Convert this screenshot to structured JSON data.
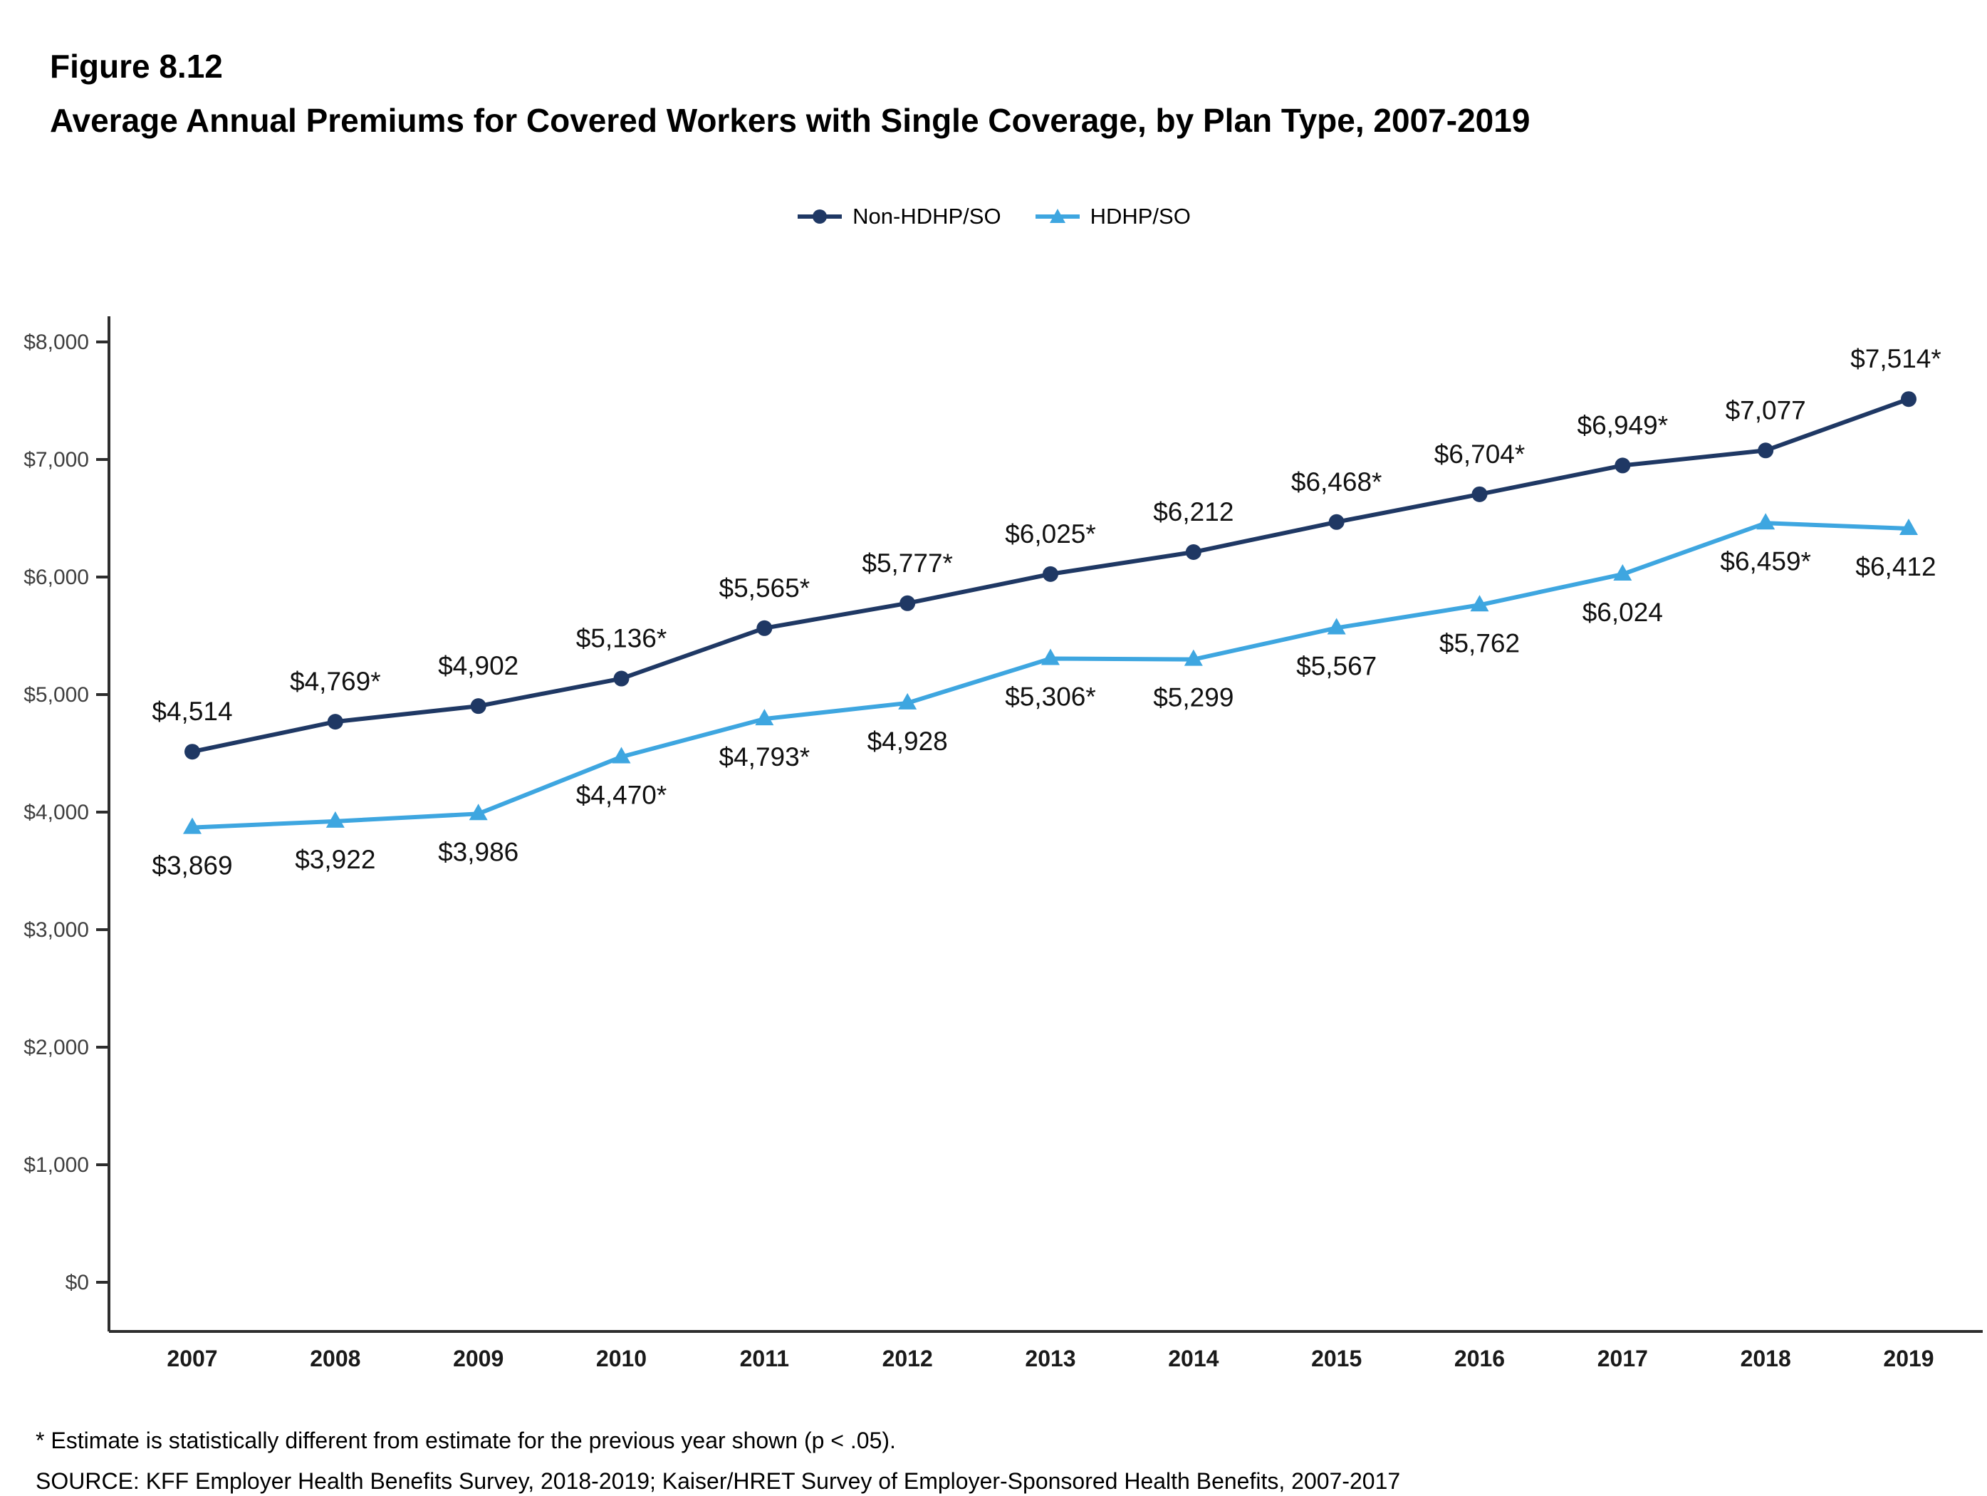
{
  "figure": {
    "label": "Figure 8.12",
    "title": "Average Annual Premiums for Covered Workers with Single Coverage, by Plan Type, 2007-2019"
  },
  "legend": [
    {
      "label": "Non-HDHP/SO",
      "color": "#1f3864",
      "marker": "circle"
    },
    {
      "label": "HDHP/SO",
      "color": "#3ea6e0",
      "marker": "triangle"
    }
  ],
  "chart_data": {
    "type": "line",
    "title": "Average Annual Premiums for Covered Workers with Single Coverage, by Plan Type, 2007-2019",
    "xlabel": "",
    "ylabel": "",
    "x_labels": [
      "2007",
      "2008",
      "2009",
      "2010",
      "2011",
      "2012",
      "2013",
      "2014",
      "2015",
      "2016",
      "2017",
      "2018",
      "2019"
    ],
    "ylim": [
      0,
      8000
    ],
    "yticks": {
      "values": [
        0,
        1000,
        2000,
        3000,
        4000,
        5000,
        6000,
        7000,
        8000
      ],
      "labels": [
        "$0",
        "$1,000",
        "$2,000",
        "$3,000",
        "$4,000",
        "$5,000",
        "$6,000",
        "$7,000",
        "$8,000"
      ]
    },
    "grid": false,
    "legend_position": "top",
    "series": [
      {
        "name": "Non-HDHP/SO",
        "color": "#1f3864",
        "marker": "circle",
        "label_position": "above",
        "values": [
          4514,
          4769,
          4902,
          5136,
          5565,
          5777,
          6025,
          6212,
          6468,
          6704,
          6949,
          7077,
          7514
        ],
        "point_labels": [
          "$4,514",
          "$4,769*",
          "$4,902",
          "$5,136*",
          "$5,565*",
          "$5,777*",
          "$6,025*",
          "$6,212",
          "$6,468*",
          "$6,704*",
          "$6,949*",
          "$7,077",
          "$7,514*"
        ]
      },
      {
        "name": "HDHP/SO",
        "color": "#3ea6e0",
        "marker": "triangle",
        "label_position": "below",
        "values": [
          3869,
          3922,
          3986,
          4470,
          4793,
          4928,
          5306,
          5299,
          5567,
          5762,
          6024,
          6459,
          6412
        ],
        "point_labels": [
          "$3,869",
          "$3,922",
          "$3,986",
          "$4,470*",
          "$4,793*",
          "$4,928",
          "$5,306*",
          "$5,299",
          "$5,567",
          "$5,762",
          "$6,024",
          "$6,459*",
          "$6,412"
        ]
      }
    ]
  },
  "footnotes": [
    "* Estimate is statistically different from estimate for the previous year shown (p < .05).",
    "SOURCE: KFF Employer Health Benefits Survey, 2018-2019; Kaiser/HRET Survey of Employer-Sponsored Health Benefits, 2007-2017"
  ]
}
